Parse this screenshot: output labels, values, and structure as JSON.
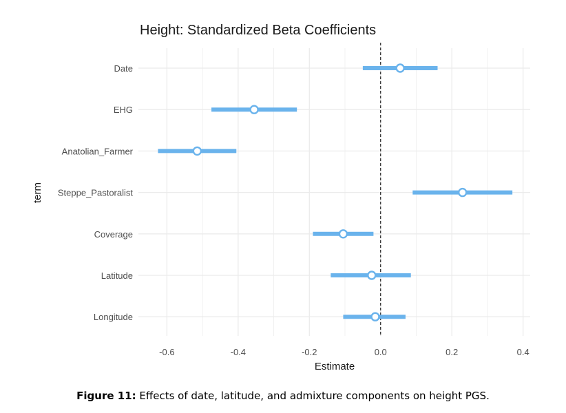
{
  "chart_data": {
    "type": "coefficient_plot",
    "title": "Height: Standardized Beta Coefficients",
    "xlabel": "Estimate",
    "ylabel": "term",
    "xlim": [
      -0.68,
      0.42
    ],
    "xticks": [
      -0.6,
      -0.4,
      -0.2,
      0.0,
      0.2,
      0.4
    ],
    "xtick_labels": [
      "-0.6",
      "-0.4",
      "-0.2",
      "0.0",
      "0.2",
      "0.4"
    ],
    "reference_line": 0,
    "terms": [
      {
        "term": "Date",
        "estimate": 0.055,
        "low": -0.05,
        "high": 0.16
      },
      {
        "term": "EHG",
        "estimate": -0.355,
        "low": -0.475,
        "high": -0.235
      },
      {
        "term": "Anatolian_Farmer",
        "estimate": -0.515,
        "low": -0.625,
        "high": -0.405
      },
      {
        "term": "Steppe_Pastoralist",
        "estimate": 0.23,
        "low": 0.09,
        "high": 0.37
      },
      {
        "term": "Coverage",
        "estimate": -0.105,
        "low": -0.19,
        "high": -0.02
      },
      {
        "term": "Latitude",
        "estimate": -0.025,
        "low": -0.14,
        "high": 0.085
      },
      {
        "term": "Longitude",
        "estimate": -0.015,
        "low": -0.105,
        "high": 0.07
      }
    ],
    "colors": {
      "interval": "#6ab3ec",
      "point_fill": "#ffffff",
      "grid": "#ebebeb",
      "reference_line": "#222222",
      "text": "#4d4d4d",
      "title": "#1a1a1a"
    }
  },
  "caption": {
    "label": "Figure 11:",
    "text": "Effects of date, latitude, and admixture components on height PGS."
  }
}
